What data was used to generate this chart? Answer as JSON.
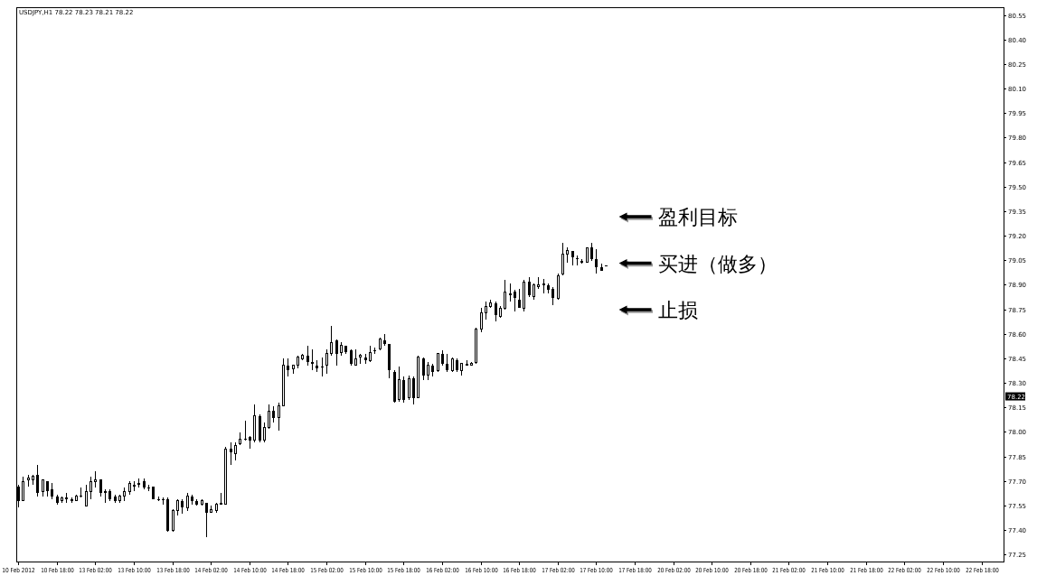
{
  "chart_data": {
    "type": "candlestick",
    "title": "USDJPY,H1 78.22 78.23 78.21 78.22",
    "color": "#000000",
    "categories": [
      "10 Feb 2012",
      null,
      null,
      null,
      null,
      null,
      null,
      null,
      "10 Feb 18:00",
      null,
      null,
      null,
      null,
      null,
      null,
      null,
      "13 Feb 02:00",
      null,
      null,
      null,
      null,
      null,
      null,
      null,
      "13 Feb 10:00",
      null,
      null,
      null,
      null,
      null,
      null,
      null,
      "13 Feb 18:00",
      null,
      null,
      null,
      null,
      null,
      null,
      null,
      "14 Feb 02:00",
      null,
      null,
      null,
      null,
      null,
      null,
      null,
      "14 Feb 10:00",
      null,
      null,
      null,
      null,
      null,
      null,
      null,
      "14 Feb 18:00",
      null,
      null,
      null,
      null,
      null,
      null,
      null,
      "15 Feb 02:00",
      null,
      null,
      null,
      null,
      null,
      null,
      null,
      "15 Feb 10:00",
      null,
      null,
      null,
      null,
      null,
      null,
      null,
      "15 Feb 18:00",
      null,
      null,
      null,
      null,
      null,
      null,
      null,
      "16 Feb 02:00",
      null,
      null,
      null,
      null,
      null,
      null,
      null,
      "16 Feb 10:00",
      null,
      null,
      null,
      null,
      null,
      null,
      null,
      "16 Feb 18:00",
      null,
      null,
      null,
      null,
      null,
      null,
      null,
      "17 Feb 02:00",
      null,
      null,
      null,
      null,
      null,
      null,
      null,
      "17 Feb 10:00",
      null,
      null,
      null,
      null,
      null,
      null,
      null,
      "17 Feb 18:00",
      null,
      null,
      null,
      null,
      null,
      null,
      null,
      "20 Feb 02:00",
      null,
      null,
      null,
      null,
      null,
      null,
      null,
      "20 Feb 10:00",
      null,
      null,
      null,
      null,
      null,
      null,
      null,
      "20 Feb 18:00",
      null,
      null,
      null,
      null,
      null,
      null,
      null,
      "21 Feb 02:00",
      null,
      null,
      null,
      null,
      null,
      null,
      null,
      "21 Feb 10:00",
      null,
      null,
      null,
      null,
      null,
      null,
      null,
      "21 Feb 18:00",
      null,
      null,
      null,
      null,
      null,
      null,
      null,
      "22 Feb 02:00",
      null,
      null,
      null,
      null,
      null,
      null,
      null,
      "22 Feb 10:00",
      null,
      null,
      null,
      null,
      null,
      null,
      null,
      "22 Feb 18:00",
      null,
      null,
      null,
      null
    ],
    "ohlc": [
      [
        77.67,
        77.68,
        77.54,
        77.58
      ],
      [
        77.58,
        77.73,
        77.58,
        77.7
      ],
      [
        77.71,
        77.74,
        77.67,
        77.72
      ],
      [
        77.71,
        77.74,
        77.68,
        77.73
      ],
      [
        77.74,
        77.8,
        77.61,
        77.63
      ],
      [
        77.64,
        77.71,
        77.61,
        77.71
      ],
      [
        77.7,
        77.7,
        77.61,
        77.64
      ],
      [
        77.65,
        77.69,
        77.59,
        77.61
      ],
      [
        77.61,
        77.62,
        77.56,
        77.57
      ],
      [
        77.58,
        77.61,
        77.57,
        77.6
      ],
      [
        77.6,
        77.63,
        77.57,
        77.59
      ],
      [
        77.59,
        77.6,
        77.57,
        77.58
      ],
      [
        77.58,
        77.62,
        77.58,
        77.61
      ],
      [
        77.61,
        77.66,
        77.6,
        77.61
      ],
      [
        77.55,
        77.68,
        77.55,
        77.64
      ],
      [
        77.64,
        77.73,
        77.59,
        77.7
      ],
      [
        77.7,
        77.76,
        77.66,
        77.71
      ],
      [
        77.71,
        77.71,
        77.61,
        77.63
      ],
      [
        77.64,
        77.65,
        77.57,
        77.63
      ],
      [
        77.64,
        77.65,
        77.58,
        77.59
      ],
      [
        77.61,
        77.62,
        77.57,
        77.58
      ],
      [
        77.58,
        77.62,
        77.57,
        77.61
      ],
      [
        77.61,
        77.66,
        77.58,
        77.64
      ],
      [
        77.64,
        77.7,
        77.62,
        77.69
      ],
      [
        77.68,
        77.7,
        77.64,
        77.67
      ],
      [
        77.68,
        77.72,
        77.66,
        77.69
      ],
      [
        77.7,
        77.72,
        77.65,
        77.66
      ],
      [
        77.66,
        77.68,
        77.64,
        77.66
      ],
      [
        77.67,
        77.67,
        77.59,
        77.59
      ],
      [
        77.59,
        77.61,
        77.58,
        77.59
      ],
      [
        77.59,
        77.6,
        77.56,
        77.59
      ],
      [
        77.59,
        77.6,
        77.39,
        77.4
      ],
      [
        77.4,
        77.53,
        77.39,
        77.52
      ],
      [
        77.52,
        77.59,
        77.49,
        77.58
      ],
      [
        77.58,
        77.59,
        77.5,
        77.54
      ],
      [
        77.54,
        77.63,
        77.52,
        77.61
      ],
      [
        77.61,
        77.62,
        77.56,
        77.58
      ],
      [
        77.58,
        77.59,
        77.55,
        77.56
      ],
      [
        77.56,
        77.59,
        77.55,
        77.58
      ],
      [
        77.57,
        77.57,
        77.36,
        77.51
      ],
      [
        77.51,
        77.55,
        77.51,
        77.53
      ],
      [
        77.52,
        77.57,
        77.51,
        77.56
      ],
      [
        77.57,
        77.63,
        77.56,
        77.56
      ],
      [
        77.56,
        77.91,
        77.56,
        77.9
      ],
      [
        77.9,
        77.94,
        77.8,
        77.88
      ],
      [
        77.87,
        77.94,
        77.83,
        77.92
      ],
      [
        77.93,
        78.0,
        77.92,
        77.96
      ],
      [
        77.96,
        78.07,
        77.95,
        77.96
      ],
      [
        77.97,
        77.98,
        77.9,
        77.95
      ],
      [
        77.95,
        78.17,
        77.94,
        78.1
      ],
      [
        78.1,
        78.11,
        77.94,
        77.95
      ],
      [
        77.95,
        78.06,
        77.94,
        78.03
      ],
      [
        78.03,
        78.17,
        78.02,
        78.13
      ],
      [
        78.13,
        78.16,
        78.06,
        78.09
      ],
      [
        78.09,
        78.18,
        78.01,
        78.16
      ],
      [
        78.16,
        78.45,
        78.16,
        78.41
      ],
      [
        78.41,
        78.45,
        78.34,
        78.38
      ],
      [
        78.39,
        78.41,
        78.36,
        78.41
      ],
      [
        78.41,
        78.47,
        78.39,
        78.46
      ],
      [
        78.45,
        78.48,
        78.44,
        78.47
      ],
      [
        78.47,
        78.53,
        78.41,
        78.43
      ],
      [
        78.43,
        78.51,
        78.38,
        78.42
      ],
      [
        78.41,
        78.44,
        78.37,
        78.39
      ],
      [
        78.4,
        78.46,
        78.34,
        78.4
      ],
      [
        78.41,
        78.51,
        78.36,
        78.48
      ],
      [
        78.48,
        78.65,
        78.47,
        78.55
      ],
      [
        78.56,
        78.57,
        78.41,
        78.48
      ],
      [
        78.49,
        78.55,
        78.47,
        78.53
      ],
      [
        78.53,
        78.53,
        78.48,
        78.49
      ],
      [
        78.5,
        78.51,
        78.41,
        78.42
      ],
      [
        78.41,
        78.51,
        78.41,
        78.45
      ],
      [
        78.46,
        78.48,
        78.42,
        78.47
      ],
      [
        78.46,
        78.48,
        78.42,
        78.44
      ],
      [
        78.44,
        78.53,
        78.43,
        78.49
      ],
      [
        78.5,
        78.52,
        78.48,
        78.5
      ],
      [
        78.51,
        78.58,
        78.5,
        78.57
      ],
      [
        78.56,
        78.6,
        78.53,
        78.54
      ],
      [
        78.54,
        78.54,
        78.33,
        78.38
      ],
      [
        78.37,
        78.38,
        78.18,
        78.19
      ],
      [
        78.2,
        78.4,
        78.19,
        78.32
      ],
      [
        78.32,
        78.34,
        78.18,
        78.2
      ],
      [
        78.21,
        78.35,
        78.2,
        78.33
      ],
      [
        78.33,
        78.34,
        78.17,
        78.21
      ],
      [
        78.21,
        78.47,
        78.21,
        78.46
      ],
      [
        78.45,
        78.46,
        78.32,
        78.35
      ],
      [
        78.35,
        78.43,
        78.32,
        78.41
      ],
      [
        78.41,
        78.42,
        78.34,
        78.37
      ],
      [
        78.38,
        78.48,
        78.37,
        78.48
      ],
      [
        78.48,
        78.5,
        78.41,
        78.42
      ],
      [
        78.42,
        78.48,
        78.37,
        78.38
      ],
      [
        78.38,
        78.46,
        78.37,
        78.45
      ],
      [
        78.44,
        78.45,
        78.37,
        78.38
      ],
      [
        78.38,
        78.42,
        78.35,
        78.42
      ],
      [
        78.42,
        78.44,
        78.41,
        78.41
      ],
      [
        78.41,
        78.43,
        78.41,
        78.42
      ],
      [
        78.43,
        78.64,
        78.42,
        78.63
      ],
      [
        78.63,
        78.76,
        78.61,
        78.73
      ],
      [
        78.73,
        78.8,
        78.69,
        78.77
      ],
      [
        78.77,
        78.81,
        78.76,
        78.79
      ],
      [
        78.79,
        78.8,
        78.68,
        78.72
      ],
      [
        78.71,
        78.77,
        78.7,
        78.76
      ],
      [
        78.76,
        78.93,
        78.75,
        78.86
      ],
      [
        78.85,
        78.91,
        78.8,
        78.84
      ],
      [
        78.86,
        78.87,
        78.74,
        78.82
      ],
      [
        78.81,
        78.88,
        78.76,
        78.76
      ],
      [
        78.76,
        78.93,
        78.74,
        78.92
      ],
      [
        78.92,
        78.95,
        78.83,
        78.84
      ],
      [
        78.83,
        78.91,
        78.81,
        78.9
      ],
      [
        78.89,
        78.95,
        78.88,
        78.9
      ],
      [
        78.9,
        78.94,
        78.85,
        78.91
      ],
      [
        78.9,
        78.91,
        78.85,
        78.87
      ],
      [
        78.88,
        78.89,
        78.78,
        78.82
      ],
      [
        78.82,
        78.97,
        78.81,
        78.96
      ],
      [
        78.97,
        79.16,
        78.96,
        79.09
      ],
      [
        79.09,
        79.13,
        79.04,
        79.11
      ],
      [
        79.11,
        79.11,
        79.02,
        79.07
      ],
      [
        79.06,
        79.08,
        79.02,
        79.06
      ],
      [
        79.05,
        79.06,
        79.03,
        79.04
      ],
      [
        79.04,
        79.13,
        79.04,
        79.13
      ],
      [
        79.13,
        79.16,
        79.05,
        79.06
      ],
      [
        79.06,
        79.12,
        78.97,
        79.01
      ],
      [
        79.01,
        79.03,
        78.99,
        78.99
      ],
      [
        79.02,
        79.02,
        79.02,
        79.02
      ],
      null,
      null,
      null,
      null,
      null,
      null,
      null,
      null,
      null,
      null,
      null,
      null,
      null,
      null,
      null,
      null,
      null,
      null,
      null,
      null,
      null,
      null,
      null,
      null,
      null,
      null,
      null,
      null,
      null,
      null,
      null,
      null,
      null,
      null,
      null,
      null,
      null,
      null,
      null,
      null,
      null,
      null,
      null,
      null,
      null,
      null,
      null,
      null,
      null,
      null,
      null,
      null,
      null,
      null,
      null,
      null,
      null,
      null,
      null,
      null,
      null,
      null,
      null,
      null,
      null,
      null,
      null,
      null,
      null,
      null,
      null,
      null,
      null,
      null,
      null,
      null,
      null,
      null,
      null,
      null,
      null,
      null
    ],
    "ylim": [
      77.21,
      80.6
    ],
    "yticks": [
      77.25,
      {
        "value": 77.4,
        "label": "77.40"
      },
      77.55,
      {
        "value": 77.7,
        "label": "77.70"
      },
      77.85,
      {
        "value": 78.0,
        "label": "78.00"
      },
      78.15,
      78.22,
      {
        "value": 78.3,
        "label": "78.30"
      },
      78.45,
      {
        "value": 78.6,
        "label": "78.60"
      },
      78.75,
      {
        "value": 78.9,
        "label": "78.90"
      },
      79.05,
      {
        "value": 79.2,
        "label": "79.20"
      },
      79.35,
      {
        "value": 79.5,
        "label": "79.50"
      },
      79.65,
      {
        "value": 79.8,
        "label": "79.80"
      },
      79.95,
      {
        "value": 80.1,
        "label": "80.10"
      },
      80.25,
      {
        "value": 80.4,
        "label": "80.40"
      },
      80.55
    ],
    "annotations": [
      "盈利目标",
      "买进（做多）",
      "止损"
    ]
  }
}
